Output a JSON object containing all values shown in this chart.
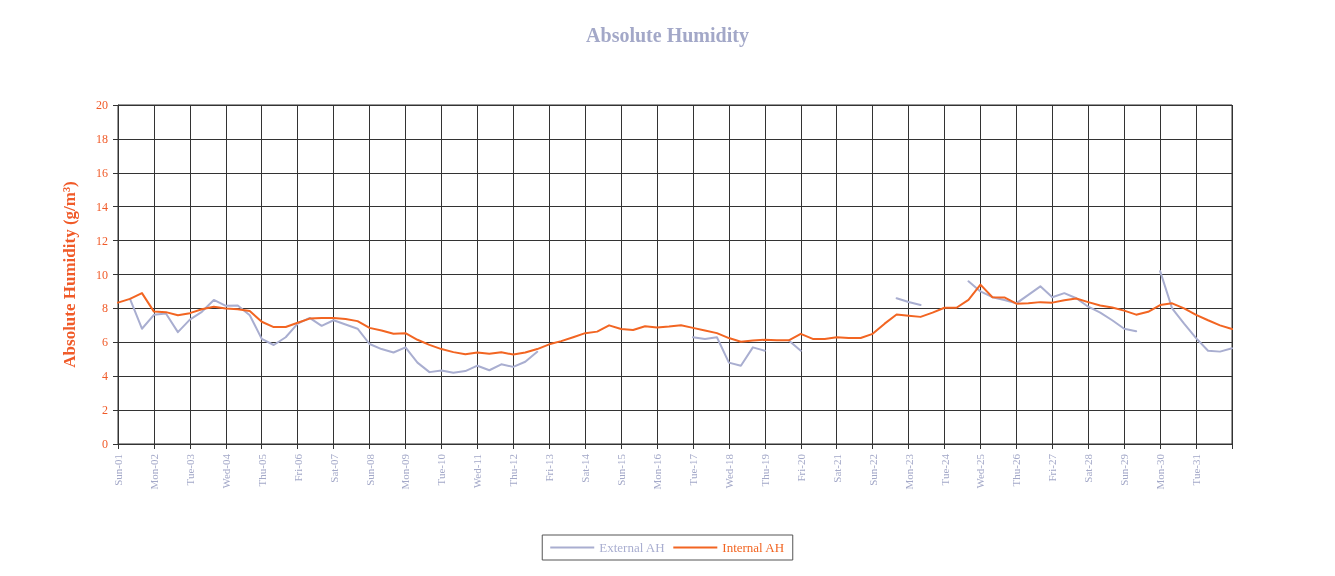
{
  "chart_data": {
    "type": "line",
    "title": "Absolute Humidity",
    "ylabel": "Absolute Humidity (g/m³)",
    "categories": [
      "Sun-01",
      null,
      null,
      "Mon-02",
      null,
      null,
      "Tue-03",
      null,
      null,
      "Wed-04",
      null,
      null,
      "Thu-05",
      null,
      null,
      "Fri-06",
      null,
      null,
      "Sat-07",
      null,
      null,
      "Sun-08",
      null,
      null,
      "Mon-09",
      null,
      null,
      "Tue-10",
      null,
      null,
      "Wed-11",
      null,
      null,
      "Thu-12",
      null,
      null,
      "Fri-13",
      null,
      null,
      "Sat-14",
      null,
      null,
      "Sun-15",
      null,
      null,
      "Mon-16",
      null,
      null,
      "Tue-17",
      null,
      null,
      "Wed-18",
      null,
      null,
      "Thu-19",
      null,
      null,
      "Fri-20",
      null,
      null,
      "Sat-21",
      null,
      null,
      "Sun-22",
      null,
      null,
      "Mon-23",
      null,
      null,
      "Tue-24",
      null,
      null,
      "Wed-25",
      null,
      null,
      "Thu-26",
      null,
      null,
      "Fri-27",
      null,
      null,
      "Sat-28",
      null,
      null,
      "Sun-29",
      null,
      null,
      "Mon-30",
      null,
      null,
      "Tue-31",
      null,
      null,
      null
    ],
    "ylim": [
      0,
      20
    ],
    "yticks": [
      0,
      2,
      4,
      6,
      8,
      10,
      12,
      14,
      16,
      18,
      20
    ],
    "grid": true,
    "legend": "bottom",
    "marker": "none",
    "line_style": "solid",
    "series": [
      {
        "name": "External AH",
        "color": "#a9aed0",
        "values": [
          null,
          8.56,
          6.8,
          7.62,
          7.7,
          6.6,
          7.34,
          7.8,
          8.5,
          8.15,
          8.17,
          7.6,
          6.2,
          5.84,
          6.3,
          7.1,
          7.44,
          6.97,
          7.3,
          7.05,
          6.8,
          5.9,
          5.6,
          5.4,
          5.7,
          4.8,
          4.24,
          4.34,
          4.2,
          4.3,
          4.62,
          4.35,
          4.7,
          4.55,
          4.85,
          5.44,
          null,
          null,
          null,
          null,
          null,
          null,
          null,
          null,
          null,
          null,
          null,
          null,
          6.3,
          6.2,
          6.3,
          4.8,
          4.62,
          5.7,
          5.5,
          null,
          6.1,
          5.5,
          null,
          null,
          null,
          null,
          null,
          null,
          null,
          8.6,
          8.38,
          8.2,
          null,
          null,
          null,
          9.6,
          9.0,
          8.66,
          8.5,
          8.3,
          8.8,
          9.3,
          8.66,
          8.9,
          8.6,
          8.1,
          7.75,
          7.3,
          6.8,
          6.65,
          null,
          10.2,
          8.0,
          7.1,
          6.25,
          5.5,
          5.45,
          5.65
        ]
      },
      {
        "name": "Internal AH",
        "color": "#f26522",
        "values": [
          8.34,
          8.56,
          8.9,
          7.81,
          7.78,
          7.6,
          7.72,
          7.95,
          8.1,
          8.0,
          7.95,
          7.85,
          7.21,
          6.9,
          6.9,
          7.15,
          7.4,
          7.44,
          7.44,
          7.38,
          7.25,
          6.85,
          6.7,
          6.5,
          6.54,
          6.15,
          5.85,
          5.6,
          5.42,
          5.3,
          5.4,
          5.32,
          5.41,
          5.28,
          5.4,
          5.6,
          5.88,
          6.07,
          6.3,
          6.54,
          6.63,
          7.0,
          6.78,
          6.73,
          6.95,
          6.88,
          6.93,
          7.0,
          6.85,
          6.7,
          6.54,
          6.25,
          6.03,
          6.1,
          6.15,
          6.12,
          6.12,
          6.5,
          6.2,
          6.2,
          6.3,
          6.25,
          6.25,
          6.5,
          7.1,
          7.64,
          7.57,
          7.5,
          7.75,
          8.04,
          8.04,
          8.5,
          9.4,
          8.66,
          8.65,
          8.28,
          8.3,
          8.37,
          8.34,
          8.48,
          8.58,
          8.37,
          8.17,
          8.05,
          7.87,
          7.63,
          7.8,
          8.2,
          8.3,
          8.0,
          7.62,
          7.3,
          7.0,
          6.78
        ]
      }
    ]
  }
}
